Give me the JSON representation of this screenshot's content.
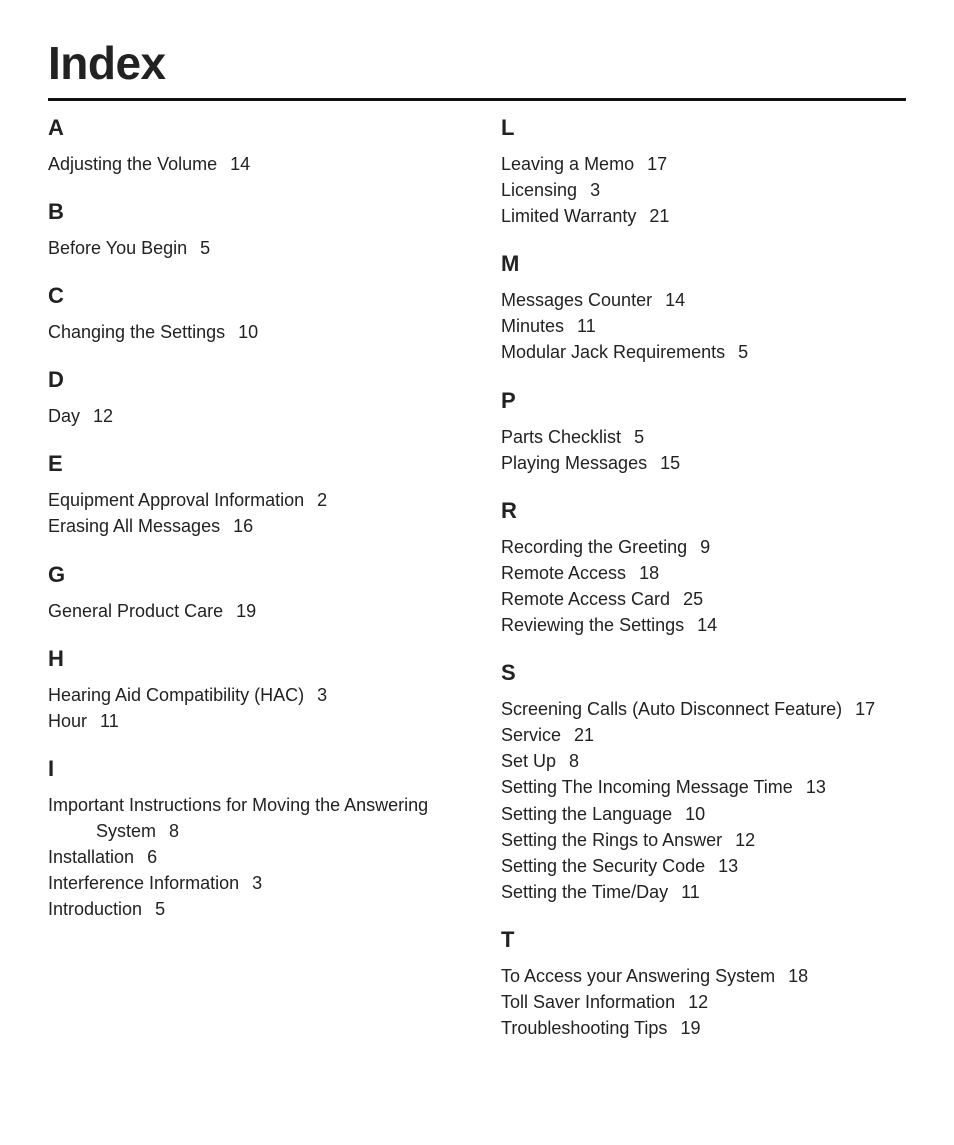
{
  "title": "Index",
  "columns": [
    [
      {
        "letter": "A",
        "entries": [
          {
            "t": "Adjusting the Volume",
            "p": "14"
          }
        ]
      },
      {
        "letter": "B",
        "entries": [
          {
            "t": "Before You Begin",
            "p": "5"
          }
        ]
      },
      {
        "letter": "C",
        "entries": [
          {
            "t": "Changing the Settings",
            "p": "10"
          }
        ]
      },
      {
        "letter": "D",
        "entries": [
          {
            "t": "Day",
            "p": "12"
          }
        ]
      },
      {
        "letter": "E",
        "entries": [
          {
            "t": "Equipment Approval Information",
            "p": "2"
          },
          {
            "t": "Erasing All Messages",
            "p": "16"
          }
        ]
      },
      {
        "letter": "G",
        "entries": [
          {
            "t": "General Product Care",
            "p": "19"
          }
        ]
      },
      {
        "letter": "H",
        "entries": [
          {
            "t": "Hearing Aid Compatibility (HAC)",
            "p": "3"
          },
          {
            "t": "Hour",
            "p": "11"
          }
        ]
      },
      {
        "letter": "I",
        "entries": [
          {
            "t": "Important Instructions for Moving the Answering System",
            "p": "8",
            "wrap": true
          },
          {
            "t": "Installation",
            "p": "6"
          },
          {
            "t": "Interference Information",
            "p": "3"
          },
          {
            "t": "Introduction",
            "p": "5"
          }
        ]
      }
    ],
    [
      {
        "letter": "L",
        "entries": [
          {
            "t": "Leaving a Memo",
            "p": "17"
          },
          {
            "t": "Licensing",
            "p": "3"
          },
          {
            "t": "Limited Warranty",
            "p": "21"
          }
        ]
      },
      {
        "letter": "M",
        "entries": [
          {
            "t": "Messages Counter",
            "p": "14"
          },
          {
            "t": "Minutes",
            "p": "11"
          },
          {
            "t": "Modular Jack Requirements",
            "p": "5"
          }
        ]
      },
      {
        "letter": "P",
        "entries": [
          {
            "t": "Parts Checklist",
            "p": "5"
          },
          {
            "t": "Playing Messages",
            "p": "15"
          }
        ]
      },
      {
        "letter": "R",
        "entries": [
          {
            "t": "Recording the Greeting",
            "p": "9"
          },
          {
            "t": "Remote Access",
            "p": "18"
          },
          {
            "t": "Remote Access Card",
            "p": "25"
          },
          {
            "t": "Reviewing the Settings",
            "p": "14"
          }
        ]
      },
      {
        "letter": "S",
        "entries": [
          {
            "t": "Screening Calls (Auto Disconnect Feature)",
            "p": "17"
          },
          {
            "t": "Service",
            "p": "21"
          },
          {
            "t": "Set Up",
            "p": "8"
          },
          {
            "t": "Setting The Incoming Message Time",
            "p": "13"
          },
          {
            "t": "Setting the Language",
            "p": "10"
          },
          {
            "t": "Setting the Rings to Answer",
            "p": "12"
          },
          {
            "t": "Setting the Security Code",
            "p": "13"
          },
          {
            "t": "Setting the Time/Day",
            "p": "11"
          }
        ]
      },
      {
        "letter": "T",
        "entries": [
          {
            "t": "To Access your Answering System",
            "p": "18"
          },
          {
            "t": "Toll Saver Information",
            "p": "12"
          },
          {
            "t": "Troubleshooting Tips",
            "p": "19"
          }
        ]
      }
    ]
  ]
}
